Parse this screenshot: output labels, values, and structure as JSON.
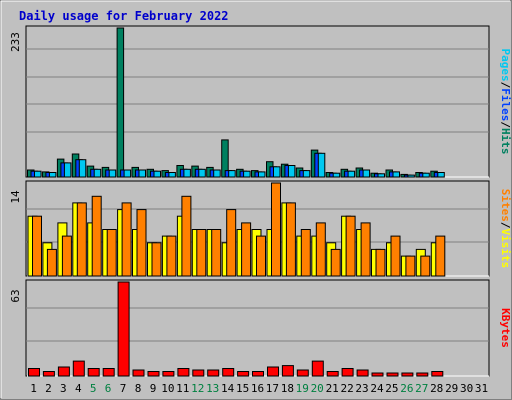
{
  "chart_data": {
    "type": "bar",
    "title": "Daily usage for February 2022",
    "categories": [
      "1",
      "2",
      "3",
      "4",
      "5",
      "6",
      "7",
      "8",
      "9",
      "10",
      "11",
      "12",
      "13",
      "14",
      "15",
      "16",
      "17",
      "18",
      "19",
      "20",
      "21",
      "22",
      "23",
      "24",
      "25",
      "26",
      "27",
      "28",
      "29",
      "30",
      "31"
    ],
    "weekend_days": [
      5,
      6,
      12,
      13,
      19,
      20,
      26,
      27
    ],
    "weekend_color": "#008040",
    "panels": [
      {
        "id": "hits_files_pages",
        "ymax": 233,
        "ymax_label": "233",
        "legend": [
          {
            "text": "Pages",
            "color": "#00c8f0"
          },
          {
            "text": "/",
            "color": "#000000"
          },
          {
            "text": "Files",
            "color": "#0040ff"
          },
          {
            "text": "/",
            "color": "#000000"
          },
          {
            "text": "Hits",
            "color": "#008060"
          }
        ],
        "series": [
          {
            "name": "Hits",
            "color": "#008060",
            "values": [
              11,
              8,
              28,
              36,
              17,
              15,
              233,
              15,
              12,
              10,
              18,
              17,
              15,
              58,
              12,
              10,
              24,
              20,
              14,
              42,
              7,
              12,
              14,
              6,
              11,
              4,
              7,
              9,
              0,
              0,
              0
            ]
          },
          {
            "name": "Files",
            "color": "#0040ff",
            "values": [
              9,
              7,
              22,
              27,
              12,
              11,
              11,
              11,
              9,
              7,
              12,
              12,
              11,
              10,
              9,
              8,
              16,
              18,
              10,
              37,
              6,
              9,
              11,
              5,
              8,
              3,
              6,
              7,
              0,
              0,
              0
            ]
          },
          {
            "name": "Pages",
            "color": "#00c8f0",
            "values": [
              9,
              7,
              22,
              27,
              12,
              11,
              11,
              11,
              9,
              7,
              12,
              12,
              11,
              10,
              9,
              8,
              16,
              18,
              10,
              37,
              6,
              9,
              11,
              5,
              8,
              3,
              6,
              7,
              0,
              0,
              0
            ]
          }
        ]
      },
      {
        "id": "visits_sites",
        "ymax": 14,
        "ymax_label": "14",
        "legend": [
          {
            "text": "Sites",
            "color": "#ff8000"
          },
          {
            "text": "/",
            "color": "#000000"
          },
          {
            "text": "Visits",
            "color": "#ffff00"
          }
        ],
        "series": [
          {
            "name": "Visits",
            "color": "#ffff00",
            "values": [
              9,
              5,
              8,
              11,
              8,
              7,
              10,
              7,
              5,
              6,
              9,
              7,
              7,
              5,
              7,
              7,
              7,
              11,
              6,
              6,
              5,
              9,
              7,
              4,
              5,
              3,
              4,
              5,
              0,
              0,
              0
            ]
          },
          {
            "name": "Sites",
            "color": "#ff8000",
            "values": [
              9,
              4,
              6,
              11,
              12,
              7,
              11,
              10,
              5,
              6,
              12,
              7,
              7,
              10,
              8,
              6,
              14,
              11,
              7,
              8,
              4,
              9,
              8,
              4,
              6,
              3,
              3,
              6,
              0,
              0,
              0
            ]
          }
        ]
      },
      {
        "id": "kbytes",
        "ymax": 63,
        "ymax_label": "63",
        "legend": [
          {
            "text": "KBytes",
            "color": "#ff0000"
          }
        ],
        "series": [
          {
            "name": "KBytes",
            "color": "#ff0000",
            "values": [
              5,
              3,
              6,
              10,
              5,
              5,
              63,
              4,
              3,
              3,
              5,
              4,
              4,
              5,
              3,
              3,
              6,
              7,
              4,
              10,
              3,
              5,
              4,
              2,
              2,
              2,
              2,
              3,
              0,
              0,
              0
            ]
          }
        ]
      }
    ]
  }
}
